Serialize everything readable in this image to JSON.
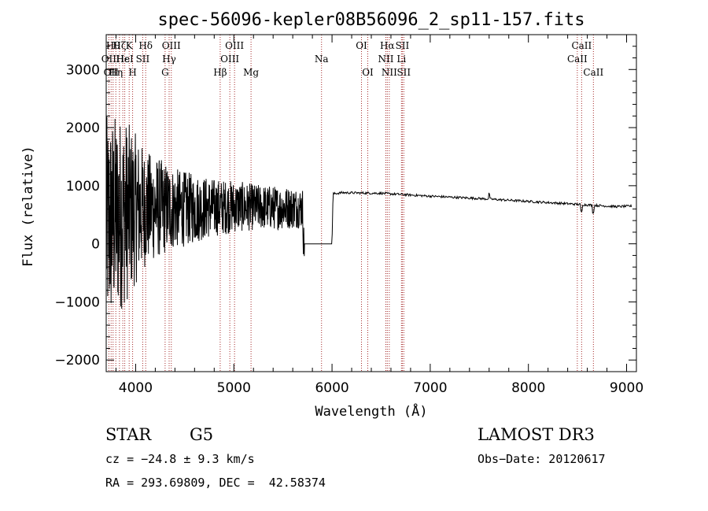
{
  "chart_data": {
    "type": "line",
    "title": "spec-56096-kepler08B56096_2_sp11-157.fits",
    "xlabel": "Wavelength (Å)",
    "ylabel": "Flux (relative)",
    "xlim": [
      3700,
      9100
    ],
    "ylim": [
      -2200,
      3600
    ],
    "xticks": [
      4000,
      5000,
      6000,
      7000,
      8000,
      9000
    ],
    "yticks": [
      -2000,
      -1000,
      0,
      1000,
      2000,
      3000
    ],
    "series": [
      {
        "name": "flux",
        "anchors_x": [
          3700,
          3800,
          3900,
          4000,
          4200,
          4500,
          5000,
          5500,
          5700,
          5710,
          6000,
          6010,
          6100,
          6500,
          7000,
          7500,
          8000,
          8500,
          8900,
          9050
        ],
        "anchors_y": [
          300,
          500,
          550,
          600,
          620,
          600,
          640,
          620,
          620,
          0,
          0,
          860,
          880,
          870,
          820,
          780,
          730,
          680,
          640,
          650
        ],
        "noise_x": [
          3700,
          3900,
          4100,
          4400,
          4800,
          5200,
          5700
        ],
        "noise_amp": [
          1900,
          1600,
          1000,
          700,
          500,
          400,
          350
        ],
        "gap": [
          5720,
          6000
        ]
      }
    ],
    "line_markers": [
      {
        "wavelength": 3727,
        "label": "OII",
        "row": 2
      },
      {
        "wavelength": 3750,
        "label": "OII",
        "row": 3
      },
      {
        "wavelength": 3770,
        "label": "Hθ",
        "row": 1
      },
      {
        "wavelength": 3798,
        "label": "Hη",
        "row": 3
      },
      {
        "wavelength": 3835,
        "label": "Hζ",
        "row": 1
      },
      {
        "wavelength": 3869,
        "label": "Hε",
        "row": 2
      },
      {
        "wavelength": 3889,
        "label": "HeI",
        "row": 2
      },
      {
        "wavelength": 3934,
        "label": "K",
        "row": 1
      },
      {
        "wavelength": 3969,
        "label": "H",
        "row": 3
      },
      {
        "wavelength": 4072,
        "label": "SII",
        "row": 2
      },
      {
        "wavelength": 4102,
        "label": "Hδ",
        "row": 1
      },
      {
        "wavelength": 4300,
        "label": "G",
        "row": 3
      },
      {
        "wavelength": 4341,
        "label": "Hγ",
        "row": 2
      },
      {
        "wavelength": 4363,
        "label": "OIII",
        "row": 1
      },
      {
        "wavelength": 4861,
        "label": "Hβ",
        "row": 3
      },
      {
        "wavelength": 4959,
        "label": "OIII",
        "row": 2
      },
      {
        "wavelength": 5007,
        "label": "OIII",
        "row": 1
      },
      {
        "wavelength": 5175,
        "label": "Mg",
        "row": 3
      },
      {
        "wavelength": 5893,
        "label": "Na",
        "row": 2
      },
      {
        "wavelength": 6300,
        "label": "OI",
        "row": 1
      },
      {
        "wavelength": 6364,
        "label": "OI",
        "row": 3
      },
      {
        "wavelength": 6548,
        "label": "NII",
        "row": 2
      },
      {
        "wavelength": 6563,
        "label": "Hα",
        "row": 1
      },
      {
        "wavelength": 6583,
        "label": "NII",
        "row": 3
      },
      {
        "wavelength": 6707,
        "label": "Li",
        "row": 2
      },
      {
        "wavelength": 6716,
        "label": "SII",
        "row": 1
      },
      {
        "wavelength": 6731,
        "label": "SII",
        "row": 3
      },
      {
        "wavelength": 8498,
        "label": "CaII",
        "row": 2
      },
      {
        "wavelength": 8542,
        "label": "CaII",
        "row": 1
      },
      {
        "wavelength": 8662,
        "label": "CaII",
        "row": 3
      }
    ]
  },
  "info": {
    "object_type": "STAR",
    "subclass": "G5",
    "survey": "LAMOST DR3",
    "cz": "cz = −24.8 ± 9.3 km/s",
    "obs_date": "Obs−Date: 20120617",
    "coords": "RA = 293.69809, DEC =  42.58374"
  },
  "colors": {
    "marker": "#a52a2a",
    "spectrum": "#000000",
    "axes": "#000000"
  }
}
